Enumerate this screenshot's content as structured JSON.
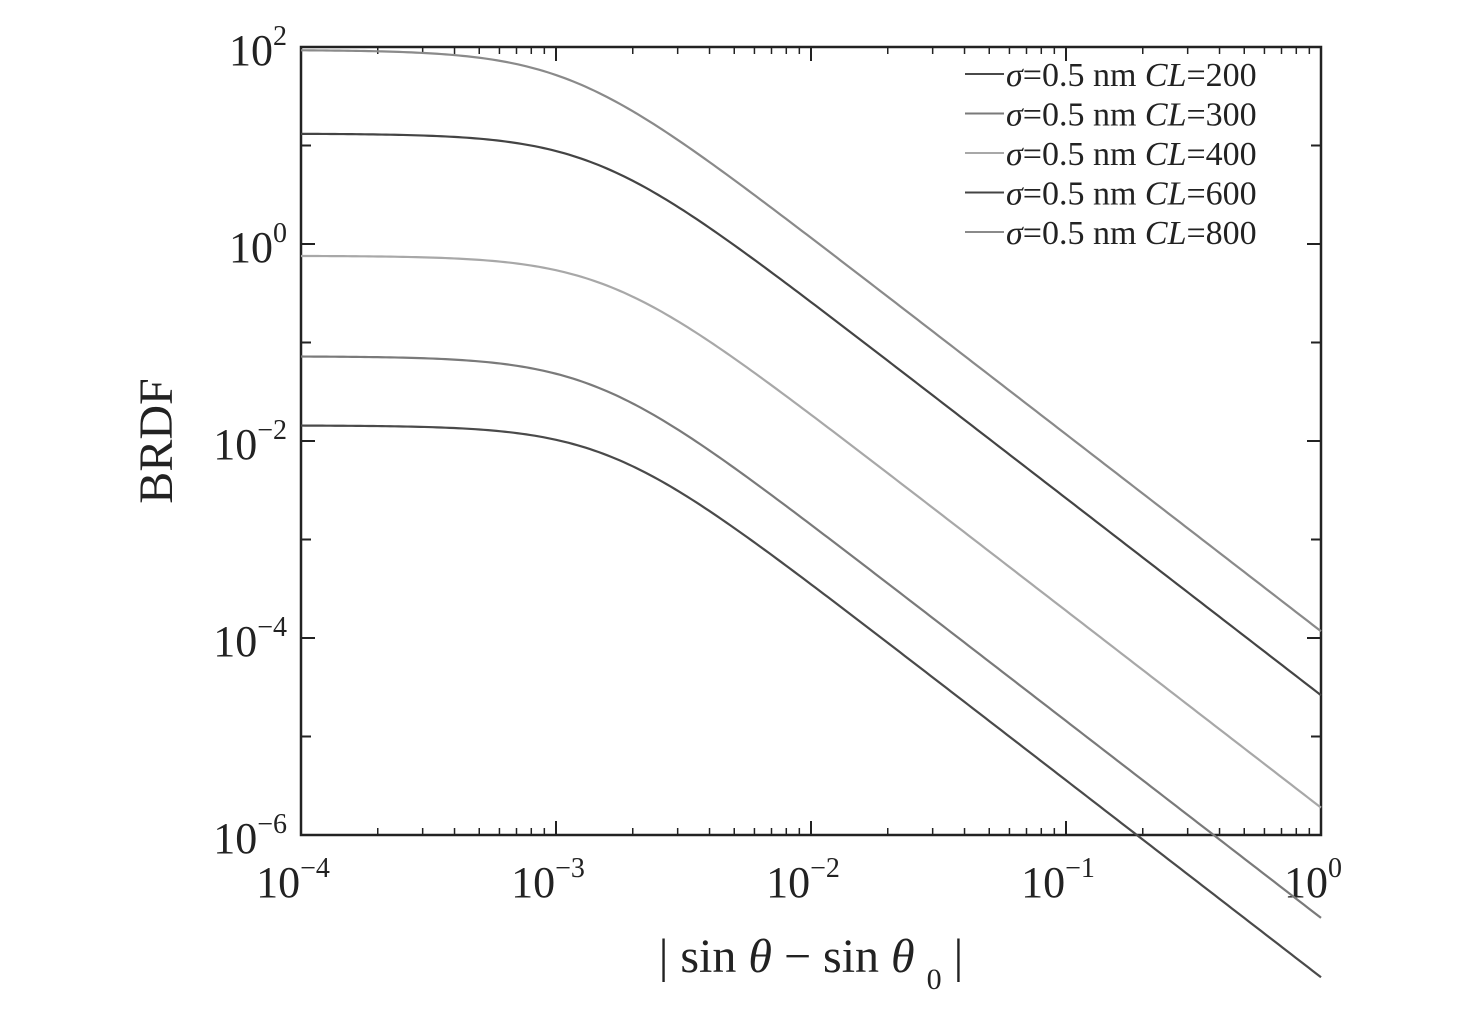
{
  "chart_data": {
    "type": "line",
    "title": "",
    "xlabel": {
      "bar_left": "|",
      "sin1": "sin",
      "theta1": "θ",
      "minus": "−",
      "sin2": "sin",
      "theta2": "θ",
      "sub": "0",
      "bar_right": "|"
    },
    "ylabel": "BRDF",
    "xscale": "log",
    "yscale": "log",
    "xlim": [
      0.0001,
      1
    ],
    "ylim": [
      1e-06,
      100
    ],
    "x_ticks": [
      {
        "value": 0.0001,
        "base": "10",
        "exp": "−4"
      },
      {
        "value": 0.001,
        "base": "10",
        "exp": "−3"
      },
      {
        "value": 0.01,
        "base": "10",
        "exp": "−2"
      },
      {
        "value": 0.1,
        "base": "10",
        "exp": "−1"
      },
      {
        "value": 1,
        "base": "10",
        "exp": "0"
      }
    ],
    "y_ticks": [
      {
        "value": 1e-06,
        "base": "10",
        "exp": "−6"
      },
      {
        "value": 0.0001,
        "base": "10",
        "exp": "−4"
      },
      {
        "value": 0.01,
        "base": "10",
        "exp": "−2"
      },
      {
        "value": 1,
        "base": "10",
        "exp": "0"
      },
      {
        "value": 100,
        "base": "10",
        "exp": "2"
      }
    ],
    "grid": false,
    "legend_position": "top-right",
    "series": [
      {
        "name": {
          "sigma": "σ",
          "mid": "=0.5 nm ",
          "cl": "CL",
          "val": "=200"
        },
        "plateau": 0.0144,
        "knee": 0.00158,
        "color": "#4a4a4a"
      },
      {
        "name": {
          "sigma": "σ",
          "mid": "=0.5 nm ",
          "cl": "CL",
          "val": "=300"
        },
        "plateau": 0.0724,
        "knee": 0.00141,
        "color": "#7a7a7a"
      },
      {
        "name": {
          "sigma": "σ",
          "mid": "=0.5 nm ",
          "cl": "CL",
          "val": "=400"
        },
        "plateau": 0.759,
        "knee": 0.00158,
        "color": "#a8a8a8"
      },
      {
        "name": {
          "sigma": "σ",
          "mid": "=0.5 nm ",
          "cl": "CL",
          "val": "=600"
        },
        "plateau": 13.2,
        "knee": 0.00141,
        "color": "#444444"
      },
      {
        "name": {
          "sigma": "σ",
          "mid": "=0.5 nm ",
          "cl": "CL",
          "val": "=800"
        },
        "plateau": 93.3,
        "knee": 0.00112,
        "color": "#8a8a8a"
      }
    ]
  }
}
